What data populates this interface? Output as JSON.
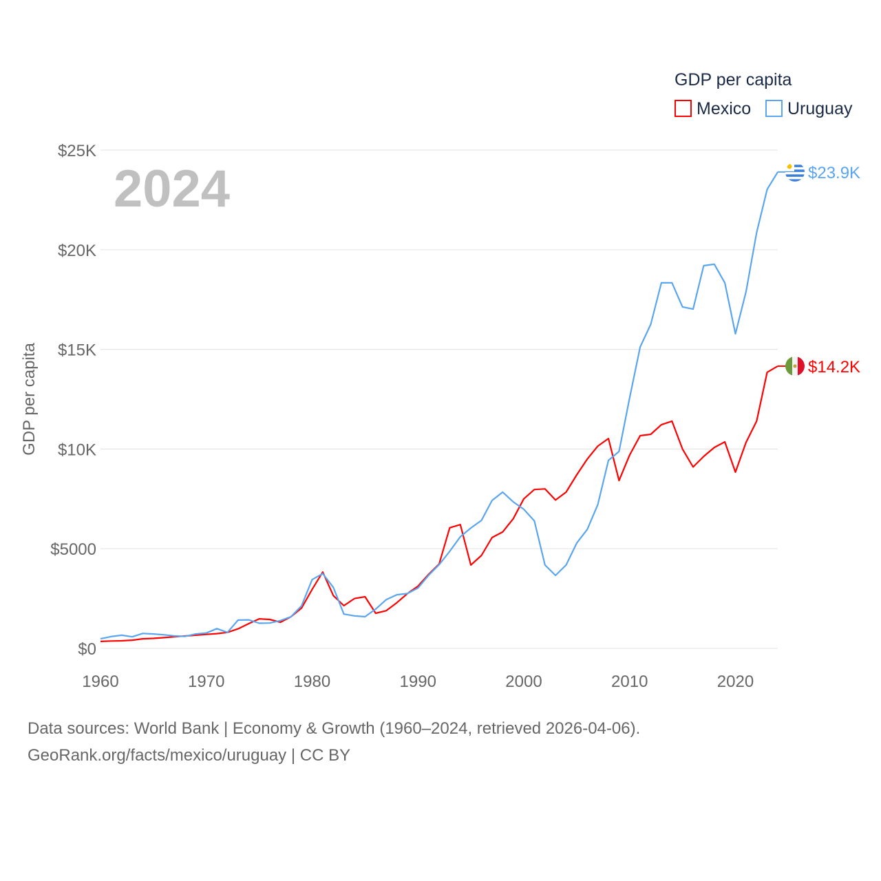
{
  "chart_data": {
    "type": "line",
    "title": "GDP per capita",
    "year_label": "2024",
    "ylabel": "GDP per capita",
    "xlabel": "",
    "xlim": [
      1960,
      2024
    ],
    "ylim": [
      0,
      25000
    ],
    "grid": true,
    "legend_position": "top-right",
    "x_ticks": [
      1960,
      1970,
      1980,
      1990,
      2000,
      2010,
      2020
    ],
    "x_tick_labels": [
      "1960",
      "1970",
      "1980",
      "1990",
      "2000",
      "2010",
      "2020"
    ],
    "y_ticks": [
      0,
      5000,
      10000,
      15000,
      20000,
      25000
    ],
    "y_tick_labels": [
      "$0",
      "$5000",
      "$10K",
      "$15K",
      "$20K",
      "$25K"
    ],
    "x": [
      1960,
      1961,
      1962,
      1963,
      1964,
      1965,
      1966,
      1967,
      1968,
      1969,
      1970,
      1971,
      1972,
      1973,
      1974,
      1975,
      1976,
      1977,
      1978,
      1979,
      1980,
      1981,
      1982,
      1983,
      1984,
      1985,
      1986,
      1987,
      1988,
      1989,
      1990,
      1991,
      1992,
      1993,
      1994,
      1995,
      1996,
      1997,
      1998,
      1999,
      2000,
      2001,
      2002,
      2003,
      2004,
      2005,
      2006,
      2007,
      2008,
      2009,
      2010,
      2011,
      2012,
      2013,
      2014,
      2015,
      2016,
      2017,
      2018,
      2019,
      2020,
      2021,
      2022,
      2023,
      2024
    ],
    "series": [
      {
        "name": "Mexico",
        "color": "#ff0000",
        "end_label": "$14.2K",
        "flag": "mexico-flag",
        "values": [
          350,
          370,
          380,
          410,
          480,
          500,
          540,
          580,
          620,
          660,
          700,
          740,
          800,
          980,
          1240,
          1480,
          1450,
          1310,
          1590,
          2020,
          2960,
          3830,
          2650,
          2140,
          2500,
          2590,
          1760,
          1890,
          2290,
          2750,
          3120,
          3710,
          4230,
          6050,
          6210,
          4180,
          4660,
          5560,
          5840,
          6500,
          7500,
          7970,
          8000,
          7440,
          7840,
          8700,
          9500,
          10150,
          10530,
          8420,
          9700,
          10670,
          10740,
          11220,
          11400,
          10000,
          9100,
          9630,
          10080,
          10360,
          8840,
          10330,
          11400,
          13850,
          14160
        ]
      },
      {
        "name": "Uruguay",
        "color": "#5aa5ef",
        "end_label": "$23.9K",
        "flag": "uruguay-flag",
        "values": [
          480,
          590,
          660,
          580,
          750,
          720,
          680,
          620,
          600,
          720,
          770,
          990,
          800,
          1420,
          1430,
          1260,
          1270,
          1390,
          1590,
          2130,
          3450,
          3750,
          3060,
          1720,
          1630,
          1590,
          1970,
          2440,
          2690,
          2750,
          3030,
          3660,
          4200,
          4870,
          5600,
          6040,
          6420,
          7420,
          7840,
          7350,
          6980,
          6390,
          4180,
          3660,
          4180,
          5280,
          5970,
          7220,
          9430,
          9880,
          12570,
          15120,
          16260,
          18340,
          18340,
          17130,
          17020,
          19200,
          19270,
          18340,
          15780,
          17890,
          20860,
          23030,
          23900
        ]
      }
    ]
  },
  "footer": {
    "line1": "Data sources: World Bank | Economy & Growth (1960–2024, retrieved 2026-04-06).",
    "line2": "GeoRank.org/facts/mexico/uruguay | CC BY"
  }
}
